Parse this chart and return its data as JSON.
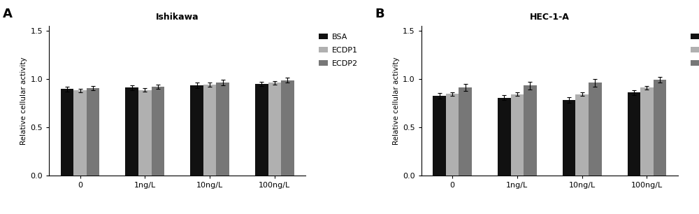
{
  "panel_A": {
    "title": "Ishikawa",
    "categories": [
      "0",
      "1ng/L",
      "10ng/L",
      "100ng/L"
    ],
    "BSA_values": [
      0.895,
      0.91,
      0.935,
      0.945
    ],
    "ECDP1_values": [
      0.88,
      0.885,
      0.94,
      0.96
    ],
    "ECDP2_values": [
      0.905,
      0.92,
      0.96,
      0.985
    ],
    "BSA_err": [
      0.025,
      0.025,
      0.028,
      0.022
    ],
    "ECDP1_err": [
      0.018,
      0.018,
      0.02,
      0.018
    ],
    "ECDP2_err": [
      0.02,
      0.022,
      0.03,
      0.025
    ]
  },
  "panel_B": {
    "title": "HEC-1-A",
    "categories": [
      "0",
      "1ng/L",
      "10ng/L",
      "100ng/L"
    ],
    "BSA_values": [
      0.825,
      0.805,
      0.78,
      0.86
    ],
    "ECDP1_values": [
      0.845,
      0.84,
      0.84,
      0.91
    ],
    "ECDP2_values": [
      0.91,
      0.93,
      0.96,
      0.99
    ],
    "BSA_err": [
      0.03,
      0.025,
      0.03,
      0.025
    ],
    "ECDP1_err": [
      0.018,
      0.018,
      0.018,
      0.018
    ],
    "ECDP2_err": [
      0.035,
      0.04,
      0.038,
      0.03
    ]
  },
  "colors": {
    "BSA": "#111111",
    "ECDP1": "#b0b0b0",
    "ECDP2": "#777777"
  },
  "ylabel": "Relative cellular activity",
  "ylim": [
    0.0,
    1.55
  ],
  "yticks": [
    0.0,
    0.5,
    1.0,
    1.5
  ],
  "bar_width": 0.2,
  "legend_labels": [
    "BSA",
    "ECDP1",
    "ECDP2"
  ],
  "panel_labels": [
    "A",
    "B"
  ],
  "figsize": [
    10.0,
    3.06
  ],
  "dpi": 100
}
